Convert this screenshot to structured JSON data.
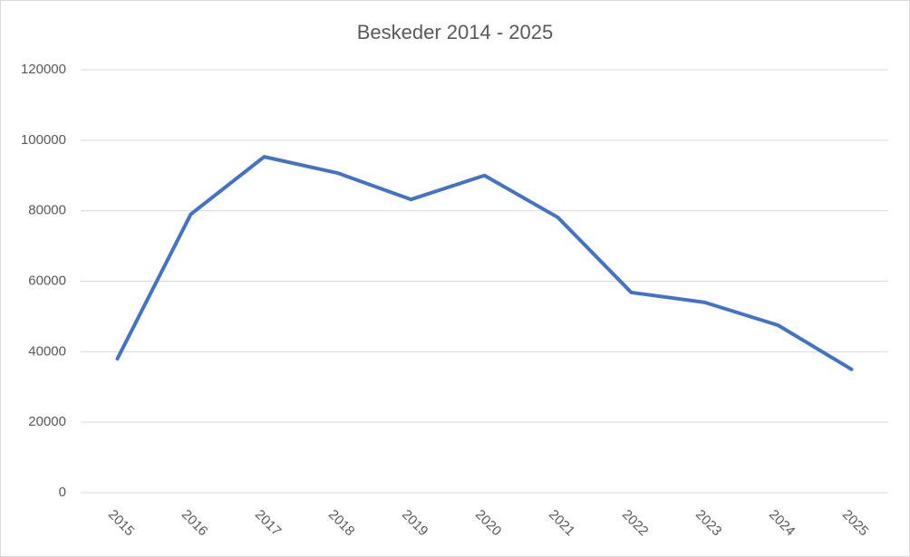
{
  "chart_data": {
    "type": "line",
    "title": "Beskeder 2014 - 2025",
    "categories": [
      "2015",
      "2016",
      "2017",
      "2018",
      "2019",
      "2020",
      "2021",
      "2022",
      "2023",
      "2024",
      "2025"
    ],
    "series": [
      {
        "color": "#4472c4",
        "values": [
          38000,
          79000,
          95300,
          90700,
          83200,
          90000,
          78100,
          56800,
          54000,
          47500,
          35000
        ]
      }
    ],
    "ylim": [
      0,
      120000
    ],
    "yticks": [
      0,
      20000,
      40000,
      60000,
      80000,
      100000,
      120000
    ],
    "grid": true
  }
}
